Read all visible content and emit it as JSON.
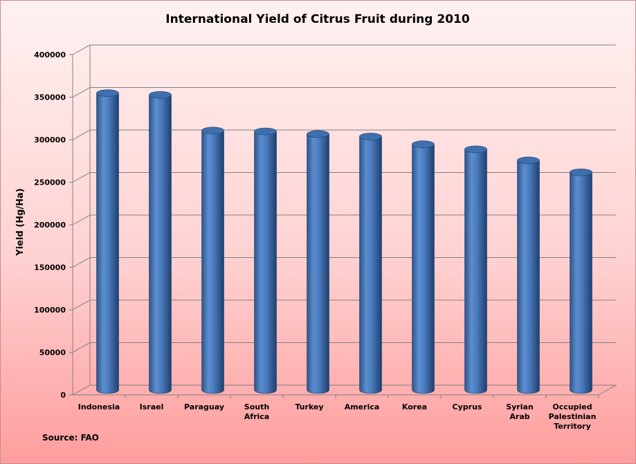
{
  "chart_data": {
    "type": "bar",
    "title": "International Yield of Citrus Fruit during 2010",
    "ylabel": "Yield (Hg/Ha)",
    "xlabel": "",
    "categories": [
      [
        "Indonesia"
      ],
      [
        "Israel"
      ],
      [
        "Paraguay"
      ],
      [
        "South",
        "Africa"
      ],
      [
        "Turkey"
      ],
      [
        "America"
      ],
      [
        "Korea"
      ],
      [
        "Cyprus"
      ],
      [
        "Syrian",
        "Arab"
      ],
      [
        "Occupied",
        "Palestinian",
        "Territory"
      ]
    ],
    "values": [
      349000,
      347000,
      305000,
      304000,
      301000,
      298000,
      289000,
      283000,
      270000,
      256000
    ],
    "ylim": [
      0,
      400000
    ],
    "yticks": [
      "0",
      "50000",
      "100000",
      "150000",
      "200000",
      "250000",
      "300000",
      "350000",
      "400000"
    ],
    "grid": true,
    "bar_color": "#4f81bd",
    "source_note": "Source: FAO"
  }
}
